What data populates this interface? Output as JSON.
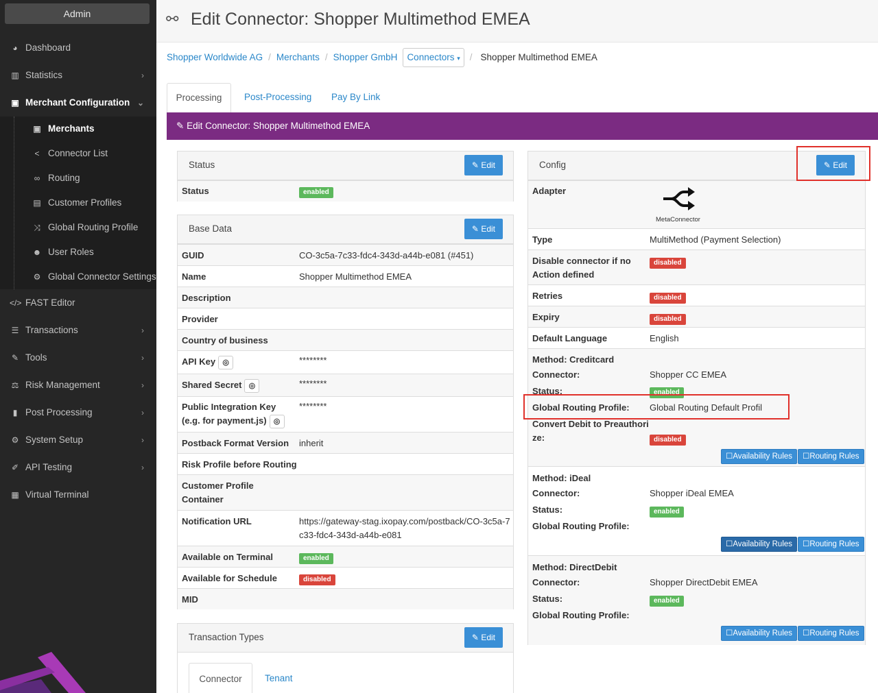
{
  "sidebar": {
    "admin_label": "Admin",
    "items": [
      {
        "label": "Dashboard",
        "icon": "dashboard-icon"
      },
      {
        "label": "Statistics",
        "icon": "bar-chart-icon"
      },
      {
        "label": "Merchant Configuration",
        "icon": "briefcase-icon"
      },
      {
        "label": "FAST Editor",
        "icon": "code-icon"
      },
      {
        "label": "Transactions",
        "icon": "list-icon"
      },
      {
        "label": "Tools",
        "icon": "wrench-icon"
      },
      {
        "label": "Risk Management",
        "icon": "scale-icon"
      },
      {
        "label": "Post Processing",
        "icon": "document-icon"
      },
      {
        "label": "System Setup",
        "icon": "gear-icon"
      },
      {
        "label": "API Testing",
        "icon": "pen-icon"
      },
      {
        "label": "Virtual Terminal",
        "icon": "calculator-icon"
      }
    ],
    "subitems": [
      {
        "label": "Merchants",
        "icon": "briefcase-icon"
      },
      {
        "label": "Connector List",
        "icon": "share-icon"
      },
      {
        "label": "Routing",
        "icon": "route-icon"
      },
      {
        "label": "Customer Profiles",
        "icon": "id-card-icon"
      },
      {
        "label": "Global Routing Profile",
        "icon": "shuffle-icon"
      },
      {
        "label": "User Roles",
        "icon": "users-icon"
      },
      {
        "label": "Global Connector Settings",
        "icon": "gear-icon"
      }
    ]
  },
  "header": {
    "title": "Edit Connector: Shopper Multimethod EMEA",
    "icon": "link-icon"
  },
  "breadcrumb": {
    "items": [
      "Shopper Worldwide AG",
      "Merchants",
      "Shopper GmbH"
    ],
    "dropdown": "Connectors",
    "current": "Shopper Multimethod EMEA"
  },
  "tabs": [
    "Processing",
    "Post-Processing",
    "Pay By Link"
  ],
  "edit_bar": "Edit Connector: Shopper Multimethod EMEA",
  "edit_label": "Edit",
  "status_panel": {
    "title": "Status",
    "label": "Status",
    "value": "enabled"
  },
  "base_panel": {
    "title": "Base Data",
    "rows": [
      {
        "label": "GUID",
        "value": "CO-3c5a-7c33-fdc4-343d-a44b-e081 (#451)"
      },
      {
        "label": "Name",
        "value": "Shopper Multimethod EMEA"
      },
      {
        "label": "Description",
        "value": ""
      },
      {
        "label": "Provider",
        "value": ""
      },
      {
        "label": "Country of business",
        "value": ""
      },
      {
        "label": "API Key",
        "value": "********"
      },
      {
        "label": "Shared Secret",
        "value": "********"
      },
      {
        "label": "Public Integration Key (e.g. for payment.js)",
        "value": "********"
      },
      {
        "label": "Postback Format Version",
        "value": "inherit"
      },
      {
        "label": "Risk Profile before Routing",
        "value": ""
      },
      {
        "label": "Customer Profile Container",
        "value": ""
      },
      {
        "label": "Notification URL",
        "value": "https://gateway-stag.ixopay.com/postback/CO-3c5a-7c33-fdc4-343d-a44b-e081"
      },
      {
        "label": "Available on Terminal",
        "value": "enabled"
      },
      {
        "label": "Available for Schedule",
        "value": "disabled"
      },
      {
        "label": "MID",
        "value": ""
      }
    ]
  },
  "tx_panel": {
    "title": "Transaction Types",
    "tabs": [
      "Connector",
      "Tenant"
    ]
  },
  "config_panel": {
    "title": "Config",
    "adapter_label": "Adapter",
    "adapter_name": "MetaConnector",
    "rows": [
      {
        "label": "Type",
        "value": "MultiMethod (Payment Selection)"
      },
      {
        "label": "Disable connector if no Action defined",
        "value": "disabled"
      },
      {
        "label": "Retries",
        "value": "disabled"
      },
      {
        "label": "Expiry",
        "value": "disabled"
      },
      {
        "label": "Default Language",
        "value": "English"
      }
    ],
    "methods": [
      {
        "method": "Method: Creditcard",
        "connector_label": "Connector:",
        "connector": "Shopper CC EMEA",
        "status_label": "Status:",
        "status": "enabled",
        "grp_label": "Global Routing Profile:",
        "grp": "Global Routing Default Profil",
        "convert_label": "Convert Debit to Preauthorize:",
        "convert": "disabled"
      },
      {
        "method": "Method: iDeal",
        "connector_label": "Connector:",
        "connector": "Shopper iDeal EMEA",
        "status_label": "Status:",
        "status": "enabled",
        "grp_label": "Global Routing Profile:",
        "grp": ""
      },
      {
        "method": "Method: DirectDebit",
        "connector_label": "Connector:",
        "connector": "Shopper DirectDebit EMEA",
        "status_label": "Status:",
        "status": "enabled",
        "grp_label": "Global Routing Profile:",
        "grp": ""
      }
    ],
    "availability_label": "Availability Rules",
    "routing_label": "Routing Rules"
  },
  "colors": {
    "sidebar": "#262626",
    "accent": "#3a8fd6",
    "purple": "#7b2b82",
    "enabled": "#5cb85c",
    "disabled": "#d9453b",
    "highlight": "#e0302a"
  }
}
